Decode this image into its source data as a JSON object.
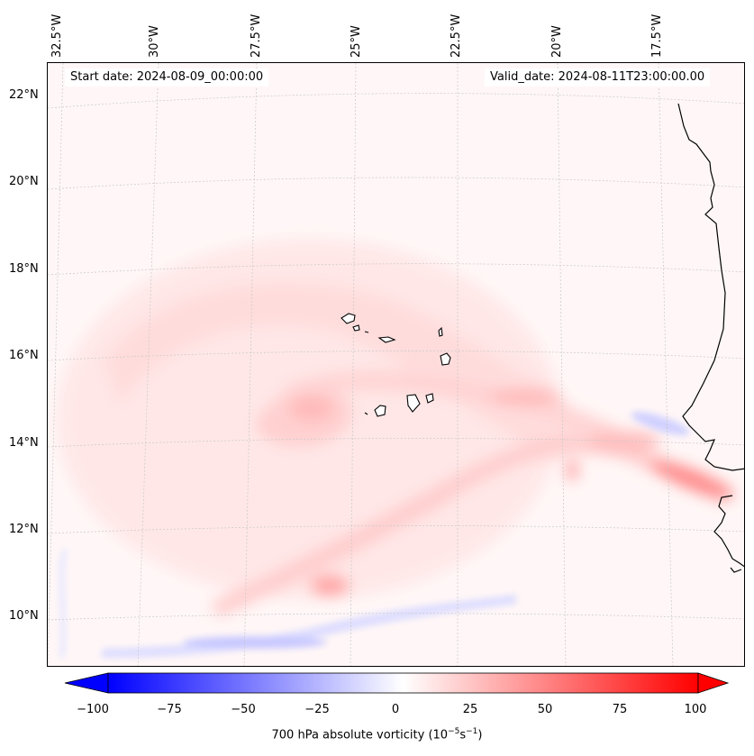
{
  "map": {
    "start_date": "Start date: 2024-08-09_00:00:00",
    "valid_date": "Valid_date: 2024-08-11T23:00:00.00",
    "lon_labels": [
      "32.5°W",
      "30°W",
      "27.5°W",
      "25°W",
      "22.5°W",
      "20°W",
      "17.5°W"
    ],
    "lat_labels": [
      "22°N",
      "20°N",
      "18°N",
      "16°N",
      "14°N",
      "12°N",
      "10°N"
    ],
    "colorbar": {
      "title": "700 hPa absolute vorticity (10",
      "title_sup1": "−5",
      "title_mid": "s",
      "title_sup2": "−1",
      "title_end": ")",
      "ticks": [
        "−100",
        "−75",
        "−50",
        "−25",
        "0",
        "25",
        "50",
        "75",
        "100"
      ],
      "min": -100,
      "max": 100,
      "low_color": "#0000ff",
      "mid_color": "#ffffff",
      "high_color": "#ff0000"
    }
  }
}
